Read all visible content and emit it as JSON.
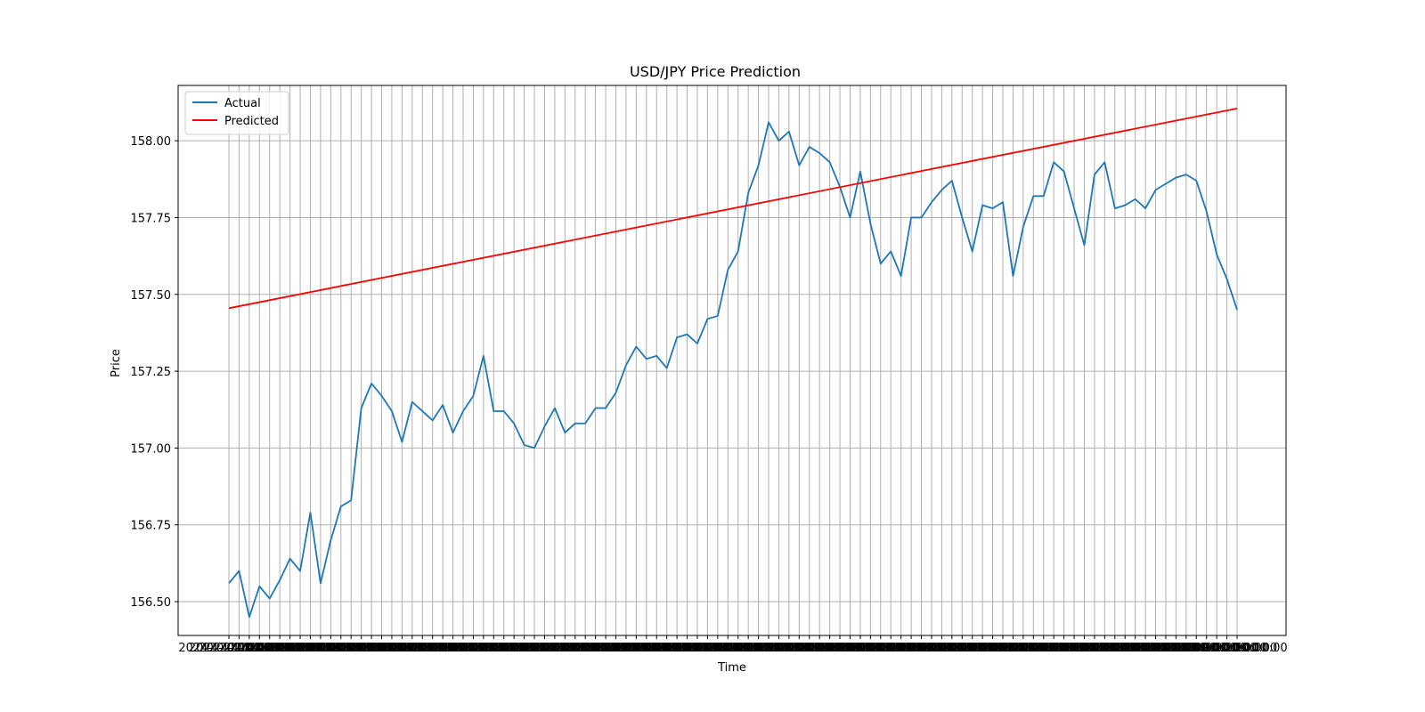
{
  "chart_data": {
    "type": "line",
    "title": "USD/JPY Price Prediction",
    "xlabel": "Time",
    "ylabel": "Price",
    "ylim": [
      156.39,
      158.18
    ],
    "yticks": [
      156.5,
      156.75,
      157.0,
      157.25,
      157.5,
      157.75,
      158.0
    ],
    "ytick_labels": [
      "156.50",
      "156.75",
      "157.00",
      "157.25",
      "157.50",
      "157.75",
      "158.00"
    ],
    "grid": true,
    "legend_position": "upper-left",
    "x_tick_text": "2024-… 00:00:00",
    "series": [
      {
        "name": "Actual",
        "color": "#1f77b4",
        "values": [
          156.56,
          156.6,
          156.45,
          156.55,
          156.51,
          156.57,
          156.64,
          156.6,
          156.79,
          156.56,
          156.7,
          156.81,
          156.83,
          157.13,
          157.21,
          157.17,
          157.12,
          157.02,
          157.15,
          157.12,
          157.09,
          157.14,
          157.05,
          157.12,
          157.17,
          157.3,
          157.12,
          157.12,
          157.08,
          157.01,
          157.0,
          157.07,
          157.13,
          157.05,
          157.08,
          157.08,
          157.13,
          157.13,
          157.18,
          157.27,
          157.33,
          157.29,
          157.3,
          157.26,
          157.36,
          157.37,
          157.34,
          157.42,
          157.43,
          157.58,
          157.64,
          157.83,
          157.92,
          158.06,
          158.0,
          158.03,
          157.92,
          157.98,
          157.96,
          157.93,
          157.85,
          157.75,
          157.9,
          157.73,
          157.6,
          157.64,
          157.56,
          157.75,
          157.75,
          157.8,
          157.84,
          157.87,
          157.75,
          157.64,
          157.79,
          157.78,
          157.8,
          157.56,
          157.72,
          157.82,
          157.82,
          157.93,
          157.9,
          157.78,
          157.66,
          157.89,
          157.93,
          157.78,
          157.79,
          157.81,
          157.78,
          157.84,
          157.86,
          157.88,
          157.89,
          157.87,
          157.77,
          157.63,
          157.55,
          157.45
        ]
      },
      {
        "name": "Predicted",
        "color": "#ff0000",
        "start": 157.455,
        "end": 158.105
      }
    ]
  }
}
